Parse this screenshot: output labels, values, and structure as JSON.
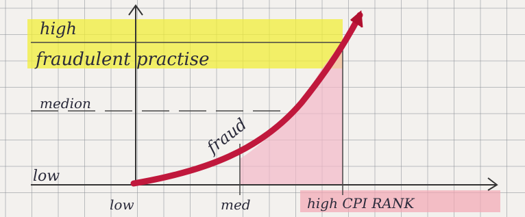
{
  "y_axis": {
    "levels": [
      {
        "label": "high"
      },
      {
        "label": "fraudulent practise"
      },
      {
        "label": "medion"
      },
      {
        "label": "low"
      }
    ]
  },
  "curve": {
    "label": "fraud"
  },
  "x_axis": {
    "levels": [
      {
        "label": "low"
      },
      {
        "label": "med"
      },
      {
        "label": "high CPI RANK"
      }
    ]
  }
}
